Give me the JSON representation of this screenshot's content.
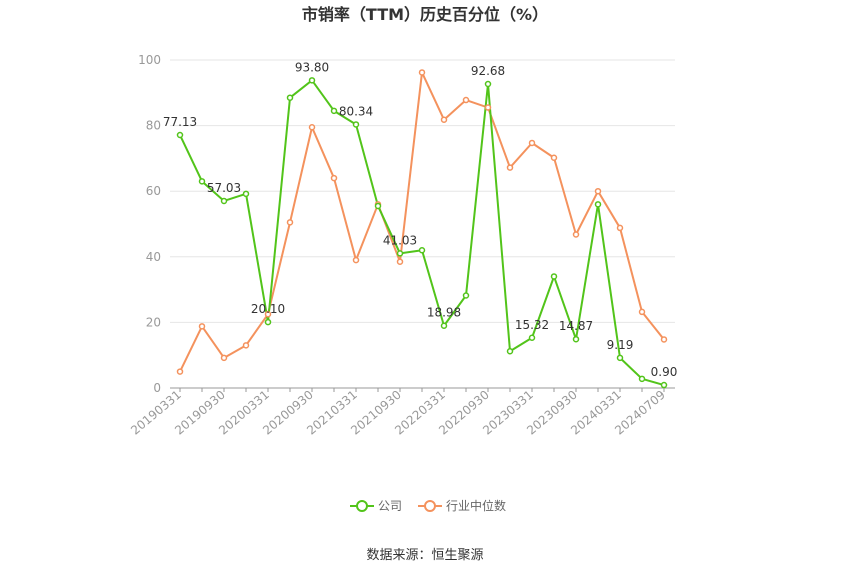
{
  "chart_data": {
    "type": "line",
    "title": "市销率（TTM）历史百分位（%）",
    "xlabel": "",
    "ylabel": "",
    "ylim": [
      0,
      100
    ],
    "yticks": [
      0,
      20,
      40,
      60,
      80,
      100
    ],
    "grid": true,
    "legend_position": "bottom",
    "x": [
      "20190331",
      "20190630",
      "20190930",
      "20191231",
      "20200331",
      "20200630",
      "20200930",
      "20201231",
      "20210331",
      "20210630",
      "20210930",
      "20211231",
      "20220331",
      "20220630",
      "20220930",
      "20221231",
      "20230331",
      "20230630",
      "20230930",
      "20231231",
      "20240331",
      "20240630",
      "20240709"
    ],
    "x_tick_labels": [
      "20190331",
      "20190930",
      "20200331",
      "20200930",
      "20210331",
      "20210930",
      "20220331",
      "20220930",
      "20230331",
      "20230930",
      "20240331",
      "20240709"
    ],
    "series": [
      {
        "name": "公司",
        "color": "#52c41a",
        "values": [
          77.13,
          63.0,
          57.03,
          59.2,
          20.1,
          88.5,
          93.8,
          84.5,
          80.34,
          55.5,
          41.03,
          42.0,
          18.98,
          28.2,
          92.68,
          11.2,
          15.32,
          34.0,
          14.87,
          56.0,
          9.19,
          2.8,
          0.9
        ],
        "labels": {
          "0": "77.13",
          "2": "57.03",
          "4": "20.10",
          "6": "93.80",
          "8": "80.34",
          "10": "41.03",
          "12": "18.98",
          "14": "92.68",
          "16": "15.32",
          "18": "14.87",
          "20": "9.19",
          "22": "0.90"
        }
      },
      {
        "name": "行业中位数",
        "color": "#f4925d",
        "values": [
          5.0,
          18.8,
          9.2,
          13.0,
          22.5,
          50.5,
          79.5,
          64.0,
          39.0,
          56.0,
          38.5,
          96.2,
          81.8,
          87.8,
          85.5,
          67.2,
          74.7,
          70.2,
          46.8,
          60.0,
          48.8,
          23.2,
          14.8
        ]
      }
    ]
  },
  "source": "数据来源：恒生聚源"
}
